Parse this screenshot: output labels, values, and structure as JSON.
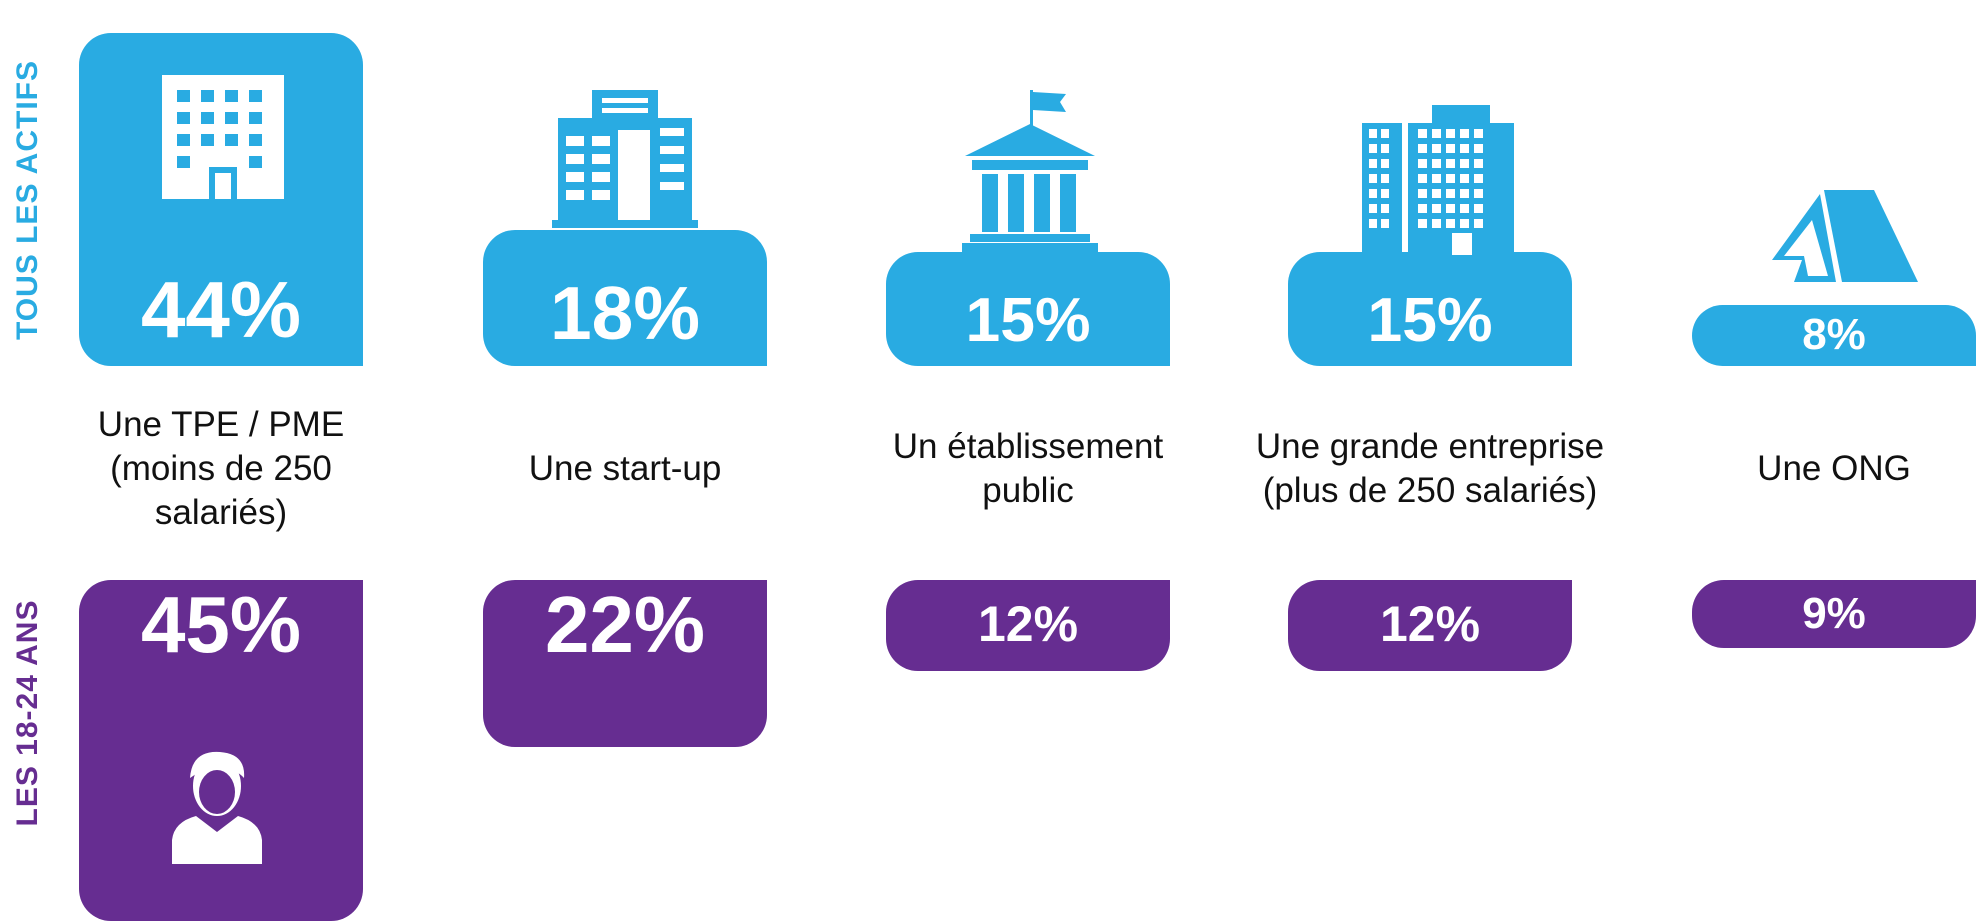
{
  "chart_data": {
    "type": "bar",
    "categories": [
      "Une TPE / PME (moins de 250 salariés)",
      "Une start-up",
      "Un établissement public",
      "Une grande entreprise (plus de 250 salariés)",
      "Une ONG"
    ],
    "series": [
      {
        "name": "TOUS LES ACTIFS",
        "color": "#29abe2",
        "values": [
          44,
          18,
          15,
          15,
          8
        ],
        "value_labels": [
          "44%",
          "18%",
          "15%",
          "15%",
          "8%"
        ]
      },
      {
        "name": "LES 18-24 ANS",
        "color": "#662d91",
        "values": [
          45,
          22,
          12,
          12,
          9
        ],
        "value_labels": [
          "45%",
          "22%",
          "12%",
          "12%",
          "9%"
        ]
      }
    ]
  }
}
